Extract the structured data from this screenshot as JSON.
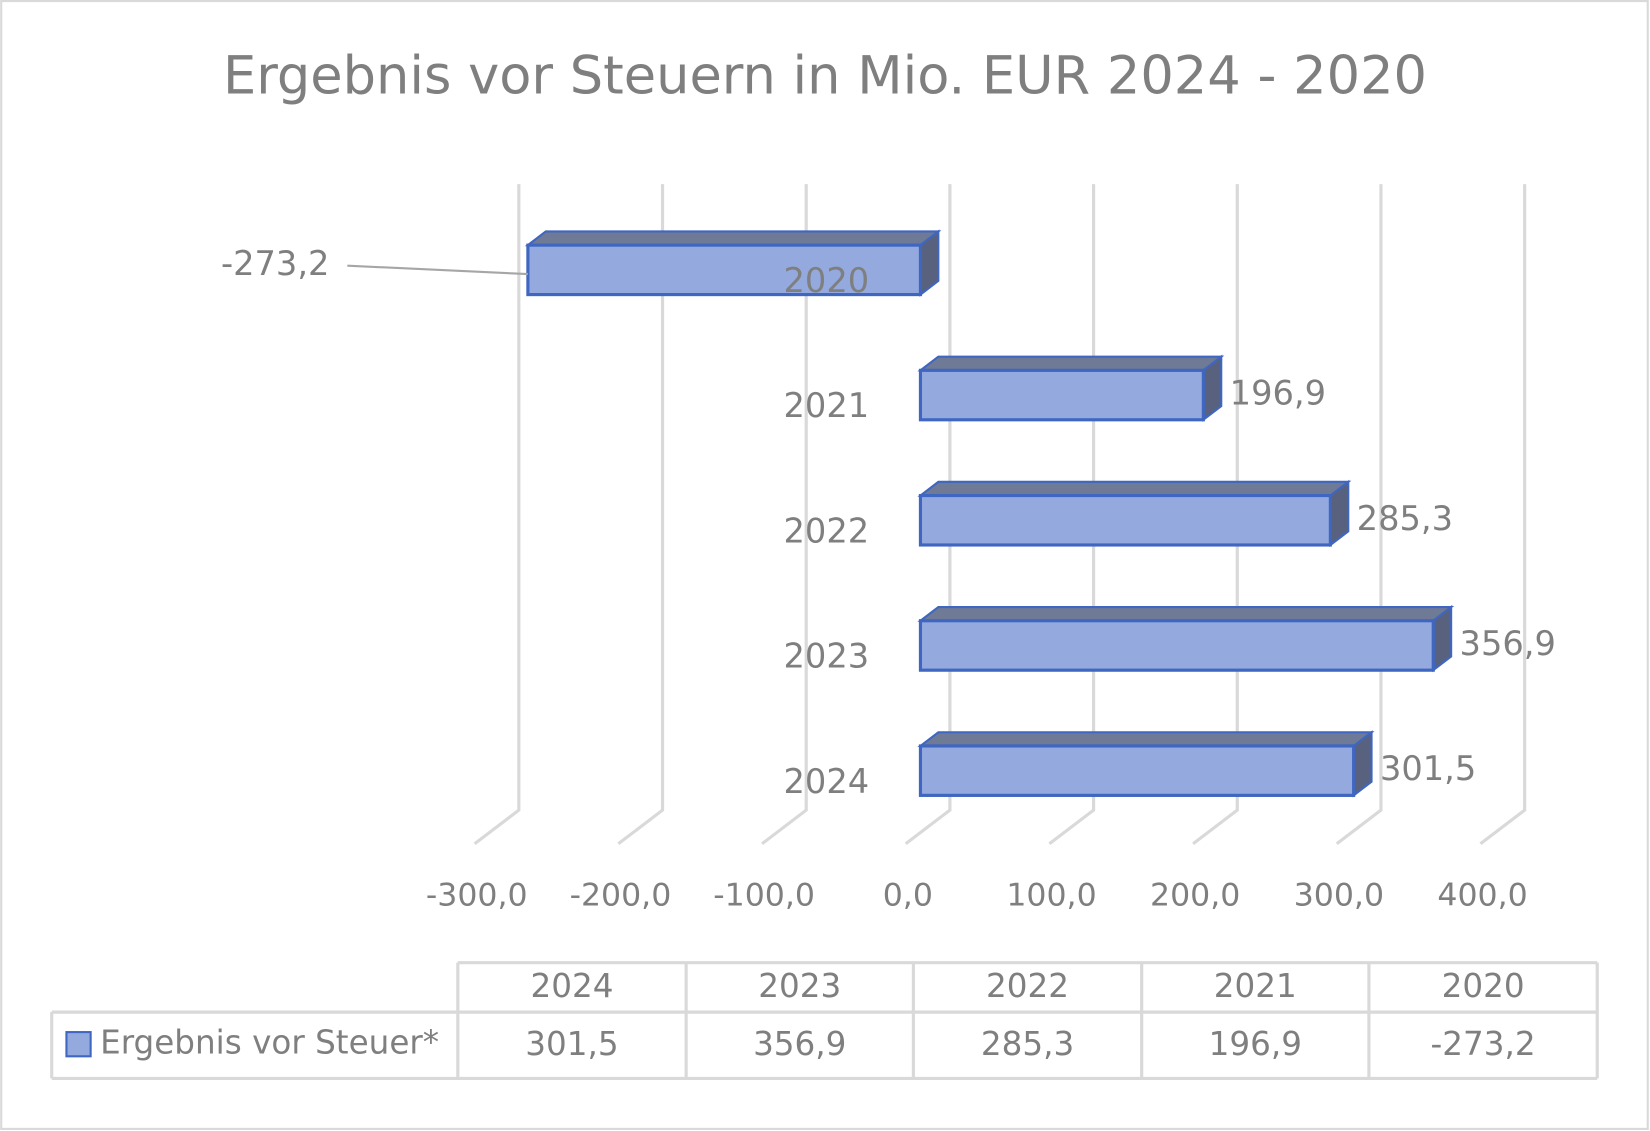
{
  "chart_data": {
    "type": "bar",
    "title": "Ergebnis vor Steuern in Mio. EUR 2024 - 2020",
    "categories": [
      "2024",
      "2023",
      "2022",
      "2021",
      "2020"
    ],
    "series": [
      {
        "name": "Ergebnis vor Steuer*",
        "color": "#94a9de",
        "values": [
          301.5,
          356.9,
          285.3,
          196.9,
          -273.2
        ],
        "value_labels": [
          "301,5",
          "356,9",
          "285,3",
          "196,9",
          "-273,2"
        ]
      }
    ],
    "xlim": [
      -300,
      400
    ],
    "xticks": [
      {
        "value": -300,
        "label": "-300,0"
      },
      {
        "value": -200,
        "label": "-200,0"
      },
      {
        "value": -100,
        "label": "-100,0"
      },
      {
        "value": 0,
        "label": "0,0"
      },
      {
        "value": 100,
        "label": "100,0"
      },
      {
        "value": 200,
        "label": "200,0"
      },
      {
        "value": 300,
        "label": "300,0"
      },
      {
        "value": 400,
        "label": "400,0"
      }
    ],
    "grid": true
  }
}
